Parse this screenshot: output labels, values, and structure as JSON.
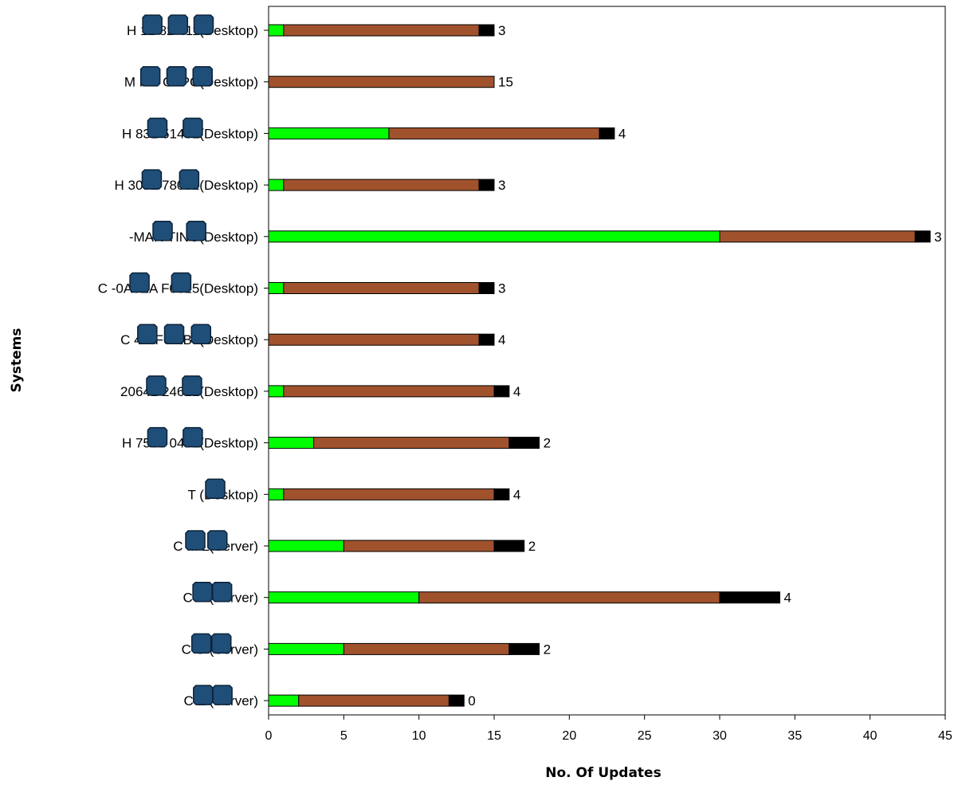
{
  "chart_data": {
    "type": "bar",
    "orientation": "horizontal",
    "stacked": true,
    "xlabel": "No. Of Updates",
    "ylabel": "Systems",
    "xlim": [
      0,
      45
    ],
    "xticks": [
      0,
      5,
      10,
      15,
      20,
      25,
      30,
      35,
      40,
      45
    ],
    "grid": false,
    "legend": "none",
    "categories": [
      "H 12  82  411(Desktop)",
      "M RC    CTPC(Desktop)",
      "H  831   51451(Desktop)",
      "H  3091  78032(Desktop)",
      "  -MAR    TING(Desktop)",
      "C  -0A3EA  F0815(Desktop)",
      "C  4C  F6   AB7(Desktop)",
      "   20641  24612(Desktop)",
      "H  7505   0431(Desktop)",
      "T  (Desktop)",
      "C  M  L(Server)",
      "C   S  (Server)",
      "C  O  (Server)",
      "C  Z  (Server)"
    ],
    "series": [
      {
        "color": "#00ff00",
        "values": [
          1,
          0,
          8,
          1,
          30,
          1,
          0,
          1,
          3,
          1,
          5,
          10,
          5,
          2
        ]
      },
      {
        "color": "#a0522d",
        "values": [
          13,
          15,
          14,
          13,
          13,
          13,
          14,
          14,
          13,
          14,
          10,
          20,
          11,
          10
        ]
      },
      {
        "color": "#000000",
        "values": [
          1,
          0,
          1,
          1,
          1,
          1,
          1,
          1,
          2,
          1,
          2,
          4,
          2,
          1
        ]
      }
    ],
    "data_labels": [
      "3",
      "15",
      "4",
      "3",
      "3",
      "3",
      "4",
      "4",
      "2",
      "4",
      "2",
      "4",
      "2",
      "0"
    ],
    "redaction_marks": [
      3,
      3,
      2,
      2,
      2,
      2,
      3,
      2,
      2,
      1,
      2,
      2,
      2,
      2
    ],
    "redaction_color": "#1f4e79"
  }
}
